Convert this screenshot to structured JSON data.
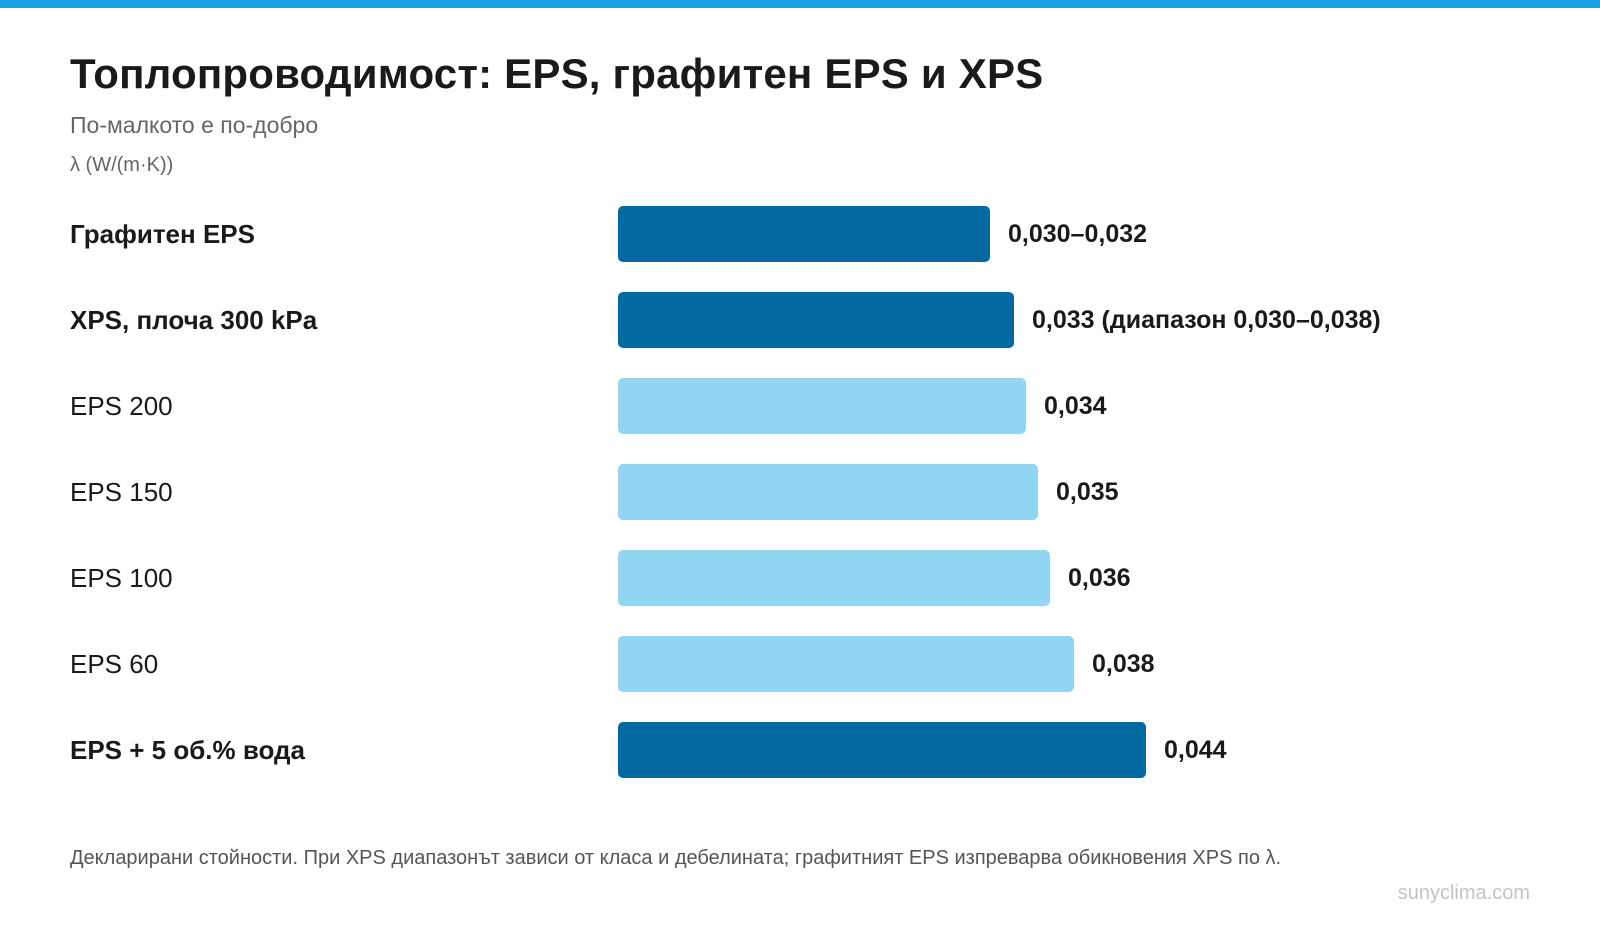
{
  "title": "Топлопроводимост: EPS, графитен EPS и XPS",
  "subtitle": "По-малкото е по-добро",
  "unit_label": "λ (W/(m·K))",
  "footnote": "Декларирани стойности. При XPS диапазонът зависи от класа и дебелината; графитният EPS изпреварва обикновения XPS по λ.",
  "watermark": "sunyclima.com",
  "colors": {
    "accent_stripe": "#19a0e4",
    "highlight_bar": "#0369a1",
    "standard_bar": "#93d6f4"
  },
  "chart_data": {
    "type": "bar",
    "orientation": "horizontal",
    "title": "Топлопроводимост: EPS, графитен EPS и XPS",
    "subtitle": "По-малкото е по-добро",
    "xlabel": "λ (W/(m·K))",
    "ylabel": "",
    "xlim": [
      0,
      0.044
    ],
    "grid": false,
    "categories": [
      "Графитен EPS",
      "XPS, плоча 300 kPa",
      "EPS 200",
      "EPS 150",
      "EPS 100",
      "EPS 60",
      "EPS + 5 об.% вода"
    ],
    "values": [
      0.031,
      0.033,
      0.034,
      0.035,
      0.036,
      0.038,
      0.044
    ],
    "value_labels": [
      "0,030–0,032",
      "0,033 (диапазон 0,030–0,038)",
      "0,034",
      "0,035",
      "0,036",
      "0,038",
      "0,044"
    ],
    "highlighted": [
      true,
      true,
      false,
      false,
      false,
      false,
      true
    ]
  }
}
